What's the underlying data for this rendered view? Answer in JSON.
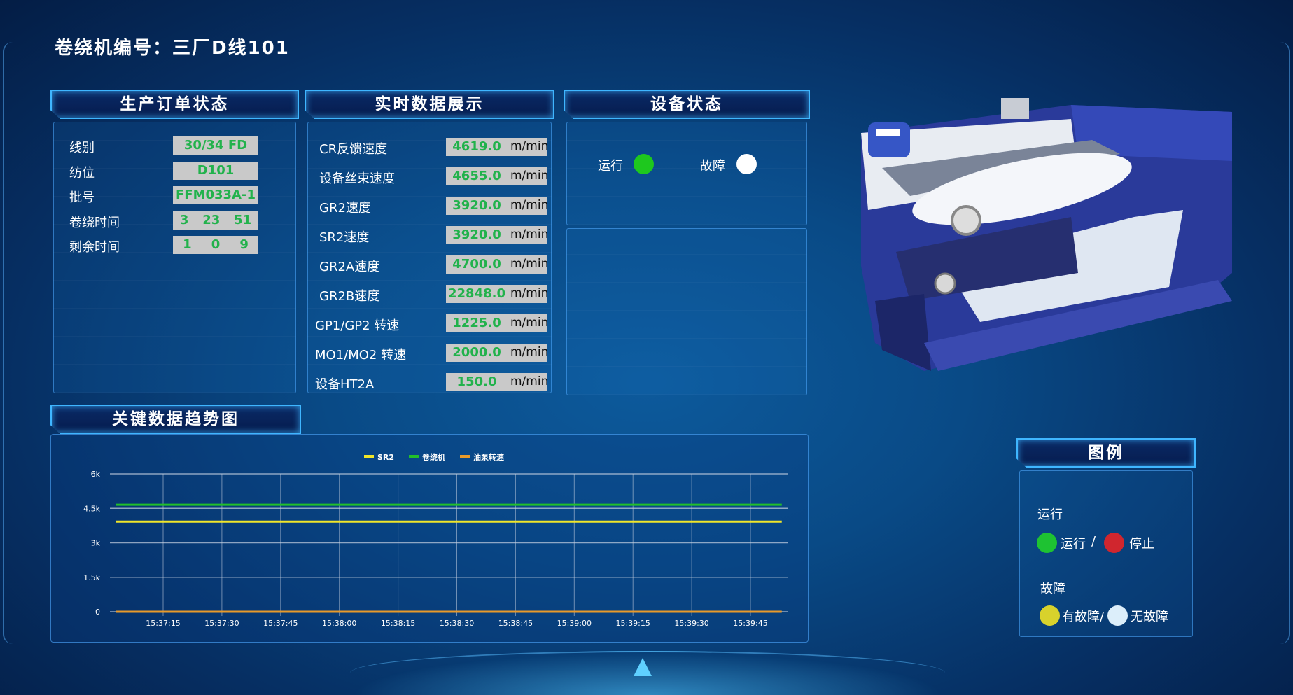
{
  "title": "卷绕机编号：三厂D线101",
  "order_panel": {
    "title": "生产订单状态",
    "rows": [
      {
        "label": "线别",
        "value": "30/34 FD"
      },
      {
        "label": "纺位",
        "value": "D101"
      },
      {
        "label": "批号",
        "value": "FFM033A-1"
      },
      {
        "label": "卷绕时间",
        "values": [
          "3",
          "23",
          "51"
        ]
      },
      {
        "label": "剩余时间",
        "values": [
          "1",
          "0",
          "9"
        ]
      }
    ]
  },
  "realtime_panel": {
    "title": "实时数据展示",
    "rows": [
      {
        "label": "CR反馈速度",
        "value": "4619.0",
        "unit": "m/min"
      },
      {
        "label": "设备丝束速度",
        "value": "4655.0",
        "unit": "m/min"
      },
      {
        "label": "GR2速度",
        "value": "3920.0",
        "unit": "m/min"
      },
      {
        "label": "SR2速度",
        "value": "3920.0",
        "unit": "m/min"
      },
      {
        "label": "GR2A速度",
        "value": "4700.0",
        "unit": "m/min"
      },
      {
        "label": "GR2B速度",
        "value": "22848.0",
        "unit": "m/min"
      },
      {
        "label": "GP1/GP2 转速",
        "value": "1225.0",
        "unit": "m/min"
      },
      {
        "label": "MO1/MO2 转速",
        "value": "2000.0",
        "unit": "m/min"
      },
      {
        "label": "设备HT2A",
        "value": "150.0",
        "unit": "m/min"
      }
    ]
  },
  "device_panel": {
    "title": "设备状态",
    "run_label": "运行",
    "run_color": "#1ec81e",
    "fault_label": "故障",
    "fault_color": "#ffffff"
  },
  "legend_panel": {
    "title": "图例",
    "run_heading": "运行",
    "run_on": "运行",
    "separator": "/",
    "run_off": "停止",
    "fault_heading": "故障",
    "fault_yes": "有故障/",
    "fault_no": "无故障",
    "colors": {
      "run_on": "#1ec232",
      "run_off": "#d0262e",
      "fault_yes": "#d8d22c",
      "fault_no": "#dceefa"
    }
  },
  "trend_panel": {
    "title": "关键数据趋势图"
  },
  "chart_data": {
    "type": "line",
    "ylim": [
      0,
      6000
    ],
    "yticks": [
      "0",
      "1.5k",
      "3k",
      "4.5k",
      "6k"
    ],
    "ytick_values": [
      0,
      1500,
      3000,
      4500,
      6000
    ],
    "xticks": [
      "15:37:15",
      "15:37:30",
      "15:37:45",
      "15:38:00",
      "15:38:15",
      "15:38:30",
      "15:38:45",
      "15:39:00",
      "15:39:15",
      "15:39:30",
      "15:39:45"
    ],
    "x": [
      "15:37:03",
      "15:37:15",
      "15:37:30",
      "15:37:45",
      "15:38:00",
      "15:38:15",
      "15:38:30",
      "15:38:45",
      "15:39:00",
      "15:39:15",
      "15:39:30",
      "15:39:45",
      "15:39:53"
    ],
    "grid": true,
    "legend_position": "top-center",
    "series": [
      {
        "name": "SR2",
        "color": "#f0e62a",
        "values": [
          3920,
          3920,
          3920,
          3920,
          3920,
          3920,
          3920,
          3920,
          3920,
          3920,
          3920,
          3920,
          3920
        ]
      },
      {
        "name": "卷绕机",
        "color": "#22c02a",
        "values": [
          4655,
          4655,
          4655,
          4655,
          4655,
          4655,
          4655,
          4655,
          4655,
          4655,
          4655,
          4655,
          4655
        ]
      },
      {
        "name": "油泵转速",
        "color": "#e89a2a",
        "values": [
          0,
          0,
          0,
          0,
          0,
          0,
          0,
          0,
          0,
          0,
          0,
          0,
          0
        ]
      }
    ]
  }
}
